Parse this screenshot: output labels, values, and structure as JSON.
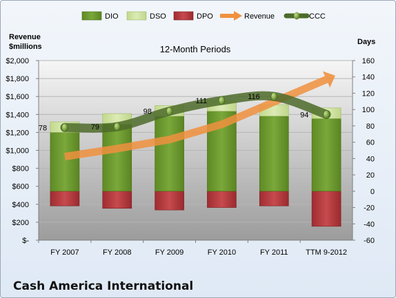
{
  "company": "Cash America International",
  "chart_data": {
    "type": "bar",
    "title": "12-Month Periods",
    "left_axis_label": [
      "Revenue",
      "$millions"
    ],
    "right_axis_label": "Days",
    "categories": [
      "FY 2007",
      "FY 2008",
      "FY 2009",
      "FY 2010",
      "FY 2011",
      "TTM 9-2012"
    ],
    "left_axis": {
      "min": 0,
      "max": 2000,
      "step": 200,
      "tick_labels": [
        "$-",
        "$200",
        "$400",
        "$600",
        "$800",
        "$1,000",
        "$1,200",
        "$1,400",
        "$1,600",
        "$1,800",
        "$2,000"
      ]
    },
    "right_axis": {
      "min": -60,
      "max": 160,
      "step": 20,
      "tick_labels": [
        "-60",
        "-40",
        "-20",
        "0",
        "20",
        "40",
        "60",
        "80",
        "100",
        "120",
        "140",
        "160"
      ]
    },
    "legend_position": "top",
    "legend": [
      "DIO",
      "DSO",
      "DPO",
      "Revenue",
      "CCC"
    ],
    "colors": {
      "DIO": "#6d9a2e",
      "DSO": "#cfe3a0",
      "DPO": "#b83a3e",
      "Revenue": "#f0913e",
      "CCC": "#4d6b2a",
      "plot_top": "#f4f4f4",
      "plot_bottom": "#9a9a9a"
    },
    "series": [
      {
        "name": "DIO",
        "axis": "right",
        "kind": "stacked-bar",
        "values": [
          72,
          82,
          92,
          98,
          92,
          89
        ]
      },
      {
        "name": "DSO",
        "axis": "right",
        "kind": "stacked-bar",
        "values": [
          13,
          13,
          13,
          13,
          14,
          13
        ]
      },
      {
        "name": "DPO",
        "axis": "right",
        "kind": "negative-bar",
        "values": [
          -18,
          -21,
          -23,
          -20,
          -18,
          -43
        ]
      },
      {
        "name": "Revenue",
        "axis": "left",
        "kind": "line",
        "values": [
          930,
          1020,
          1120,
          1290,
          1540,
          1790
        ]
      },
      {
        "name": "CCC",
        "axis": "right",
        "kind": "line",
        "values": [
          78,
          79,
          98,
          111,
          116,
          94
        ]
      }
    ],
    "ccc_labels": [
      "78",
      "79",
      "98",
      "111",
      "116",
      "94"
    ]
  }
}
